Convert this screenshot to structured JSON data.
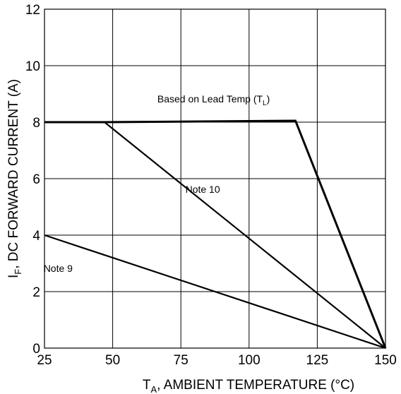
{
  "chart_data": {
    "type": "line",
    "xlabel": {
      "main": "T",
      "sub": "A",
      "rest": ", AMBIENT TEMPERATURE (°C)"
    },
    "ylabel": {
      "main": "I",
      "sub": "F",
      "rest": ", DC FORWARD CURRENT (A)"
    },
    "xlim": [
      25,
      150
    ],
    "ylim": [
      0,
      12
    ],
    "xticks": [
      25,
      50,
      75,
      100,
      125,
      150
    ],
    "yticks": [
      0,
      2,
      4,
      6,
      8,
      10,
      12
    ],
    "grid": true,
    "series": [
      {
        "name": "",
        "values": [
          [
            25,
            8
          ],
          [
            47,
            8
          ],
          [
            117,
            8.05
          ],
          [
            150,
            0
          ]
        ]
      },
      {
        "name": "",
        "values": [
          [
            47,
            8
          ],
          [
            150,
            0
          ]
        ]
      },
      {
        "name": "",
        "values": [
          [
            25,
            4
          ],
          [
            150,
            0
          ]
        ]
      }
    ],
    "annotations": [
      {
        "key": "lead",
        "main": "Based on Lead Temp (T",
        "sub": "L",
        "rest": ")",
        "x": 87,
        "y": 8.7
      },
      {
        "key": "note10",
        "main": "Note 10",
        "sub": "",
        "rest": "",
        "x": 83,
        "y": 5.5
      },
      {
        "key": "note9",
        "main": "Note 9",
        "sub": "",
        "rest": "",
        "x": 30,
        "y": 2.7
      }
    ],
    "colors": {
      "line": "#000000",
      "grid": "#000000",
      "background": "#ffffff"
    }
  }
}
